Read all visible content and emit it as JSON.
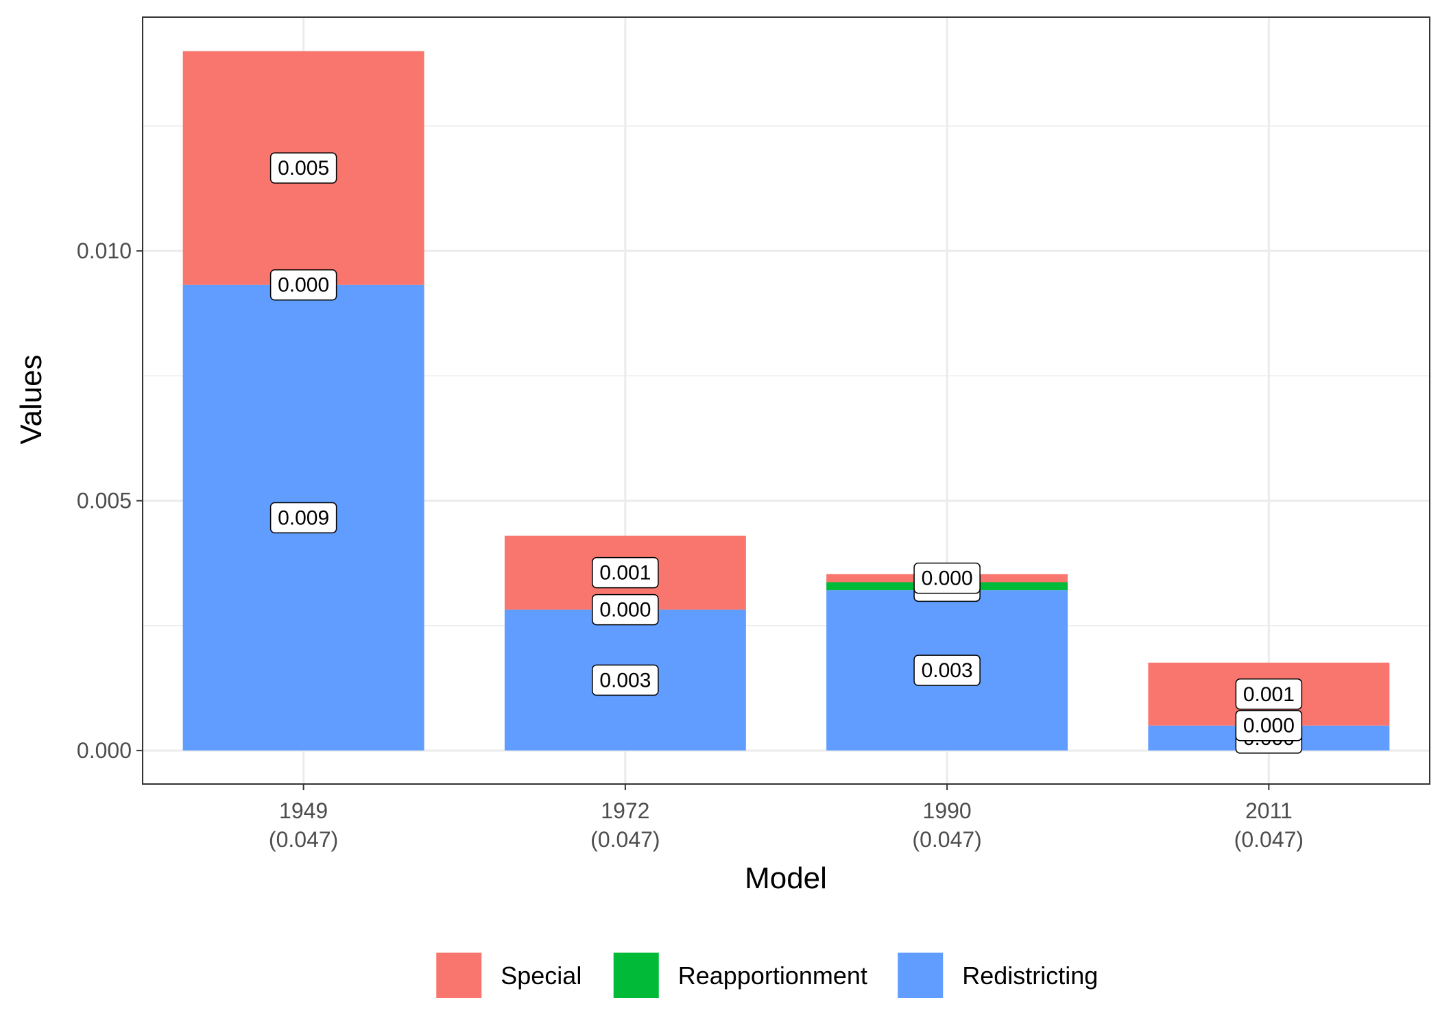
{
  "chart_data": {
    "type": "bar",
    "stacked": true,
    "xlabel": "Model",
    "ylabel": "Values",
    "categories": [
      "1949\n(0.047)",
      "1972\n(0.047)",
      "1990\n(0.047)",
      "2011\n(0.047)"
    ],
    "category_lines": [
      [
        "1949",
        "(0.047)"
      ],
      [
        "1972",
        "(0.047)"
      ],
      [
        "1990",
        "(0.047)"
      ],
      [
        "2011",
        "(0.047)"
      ]
    ],
    "ylim": [
      -0.00067,
      0.01468
    ],
    "yticks": [
      0.0,
      0.005,
      0.01
    ],
    "ytick_labels": [
      "0.000",
      "0.005",
      "0.010"
    ],
    "grid": true,
    "legend_position": "bottom",
    "series": [
      {
        "name": "Redistricting",
        "color": "#619CFF",
        "values": [
          0.00932,
          0.00282,
          0.00321,
          0.0005
        ],
        "labels": [
          "0.009",
          "0.003",
          "0.003",
          "0.000"
        ]
      },
      {
        "name": "Reapportionment",
        "color": "#00BA38",
        "values": [
          0.0,
          0.0,
          0.00016,
          0.0
        ],
        "labels": [
          "0.000",
          "0.000",
          "0.000",
          "0.000"
        ]
      },
      {
        "name": "Special",
        "color": "#F8766D",
        "values": [
          0.00468,
          0.00148,
          0.00016,
          0.00126
        ],
        "labels": [
          "0.005",
          "0.001",
          "0.000",
          "0.001"
        ]
      }
    ],
    "legend_order": [
      "Special",
      "Reapportionment",
      "Redistricting"
    ]
  }
}
